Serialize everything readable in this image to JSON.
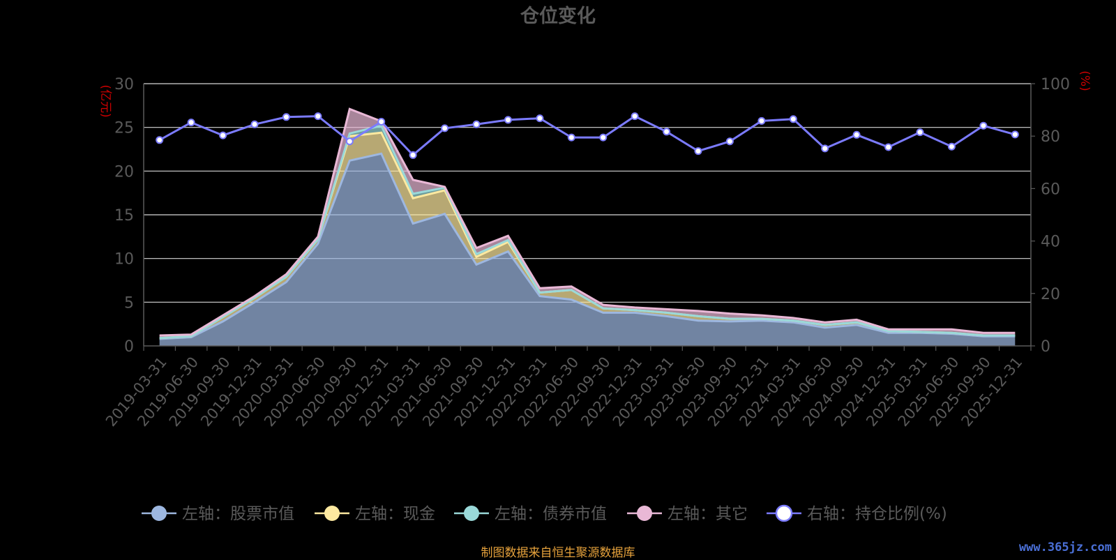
{
  "colors": {
    "background": "#000000",
    "title": "#5a5a5a",
    "axis_text": "#5a5a5a",
    "unit_label": "#cc0000",
    "grid": "#d8d8d8",
    "stock": "#9db7e0",
    "cash": "#fde9a0",
    "bond": "#9ad9d9",
    "other": "#e9b8d6",
    "ratio": "#7b7bff"
  },
  "footer": {
    "source_note": "制图数据来自恒生聚源数据库",
    "watermark": "www.365jz.com"
  },
  "chart_data": {
    "type": "area",
    "title": "仓位变化",
    "left_unit": "(亿元)",
    "right_unit": "(%)",
    "ylim_left": [
      0,
      30
    ],
    "ylim_right": [
      0,
      100
    ],
    "yticks_left": [
      0,
      5,
      10,
      15,
      20,
      25,
      30
    ],
    "yticks_right": [
      0,
      20,
      40,
      60,
      80,
      100
    ],
    "grid": true,
    "legend_position": "bottom",
    "categories": [
      "2019-03-31",
      "2019-06-30",
      "2019-09-30",
      "2019-12-31",
      "2020-03-31",
      "2020-06-30",
      "2020-09-30",
      "2020-12-31",
      "2021-03-31",
      "2021-06-30",
      "2021-09-30",
      "2021-12-31",
      "2022-03-31",
      "2022-06-30",
      "2022-09-30",
      "2022-12-31",
      "2023-03-31",
      "2023-06-30",
      "2023-09-30",
      "2023-12-31",
      "2024-03-31",
      "2024-06-30",
      "2024-09-30",
      "2024-12-31",
      "2025-03-31",
      "2025-06-30",
      "2025-09-30",
      "2025-12-31"
    ],
    "series": [
      {
        "name": "左轴：股票市值",
        "axis": "left",
        "kind": "stacked-area",
        "values": [
          0.8,
          1.0,
          2.8,
          5.0,
          7.3,
          11.7,
          21.2,
          22.0,
          14.0,
          15.1,
          9.3,
          10.8,
          5.7,
          5.3,
          3.8,
          3.8,
          3.4,
          2.9,
          2.8,
          2.9,
          2.7,
          2.1,
          2.4,
          1.5,
          1.5,
          1.4,
          1.1,
          1.1
        ]
      },
      {
        "name": "左轴：现金",
        "axis": "left",
        "kind": "stacked-area",
        "values": [
          0.1,
          0.1,
          0.5,
          0.5,
          0.6,
          0.5,
          2.8,
          2.4,
          2.9,
          2.7,
          0.9,
          1.1,
          0.4,
          1.1,
          0.5,
          0.3,
          0.4,
          0.5,
          0.3,
          0.2,
          0.2,
          0.3,
          0.3,
          0.2,
          0.1,
          0.1,
          0.1,
          0.1
        ]
      },
      {
        "name": "左轴：债券市值",
        "axis": "left",
        "kind": "stacked-area",
        "values": [
          0.0,
          0.0,
          0.0,
          0.0,
          0.0,
          0.0,
          0.3,
          0.8,
          0.5,
          0.3,
          0.3,
          0.2,
          0.0,
          0.0,
          0.0,
          0.0,
          0.0,
          0.0,
          0.0,
          0.0,
          0.0,
          0.0,
          0.0,
          0.0,
          0.0,
          0.0,
          0.0,
          0.0
        ]
      },
      {
        "name": "左轴：其它",
        "axis": "left",
        "kind": "stacked-area",
        "values": [
          0.3,
          0.2,
          0.2,
          0.2,
          0.3,
          0.3,
          2.8,
          0.5,
          1.6,
          0.1,
          0.7,
          0.5,
          0.5,
          0.4,
          0.4,
          0.3,
          0.4,
          0.6,
          0.6,
          0.4,
          0.3,
          0.3,
          0.3,
          0.2,
          0.3,
          0.4,
          0.3,
          0.3
        ]
      },
      {
        "name": "右轴：持仓比例(%)",
        "axis": "right",
        "kind": "line",
        "values": [
          78.5,
          85.2,
          80.3,
          84.5,
          87.3,
          87.6,
          78.0,
          85.5,
          72.8,
          83.0,
          84.5,
          86.2,
          86.8,
          79.5,
          79.5,
          87.6,
          81.7,
          74.3,
          78.0,
          85.8,
          86.5,
          75.3,
          80.5,
          75.8,
          81.5,
          76.0,
          84.0,
          80.6
        ]
      }
    ]
  }
}
